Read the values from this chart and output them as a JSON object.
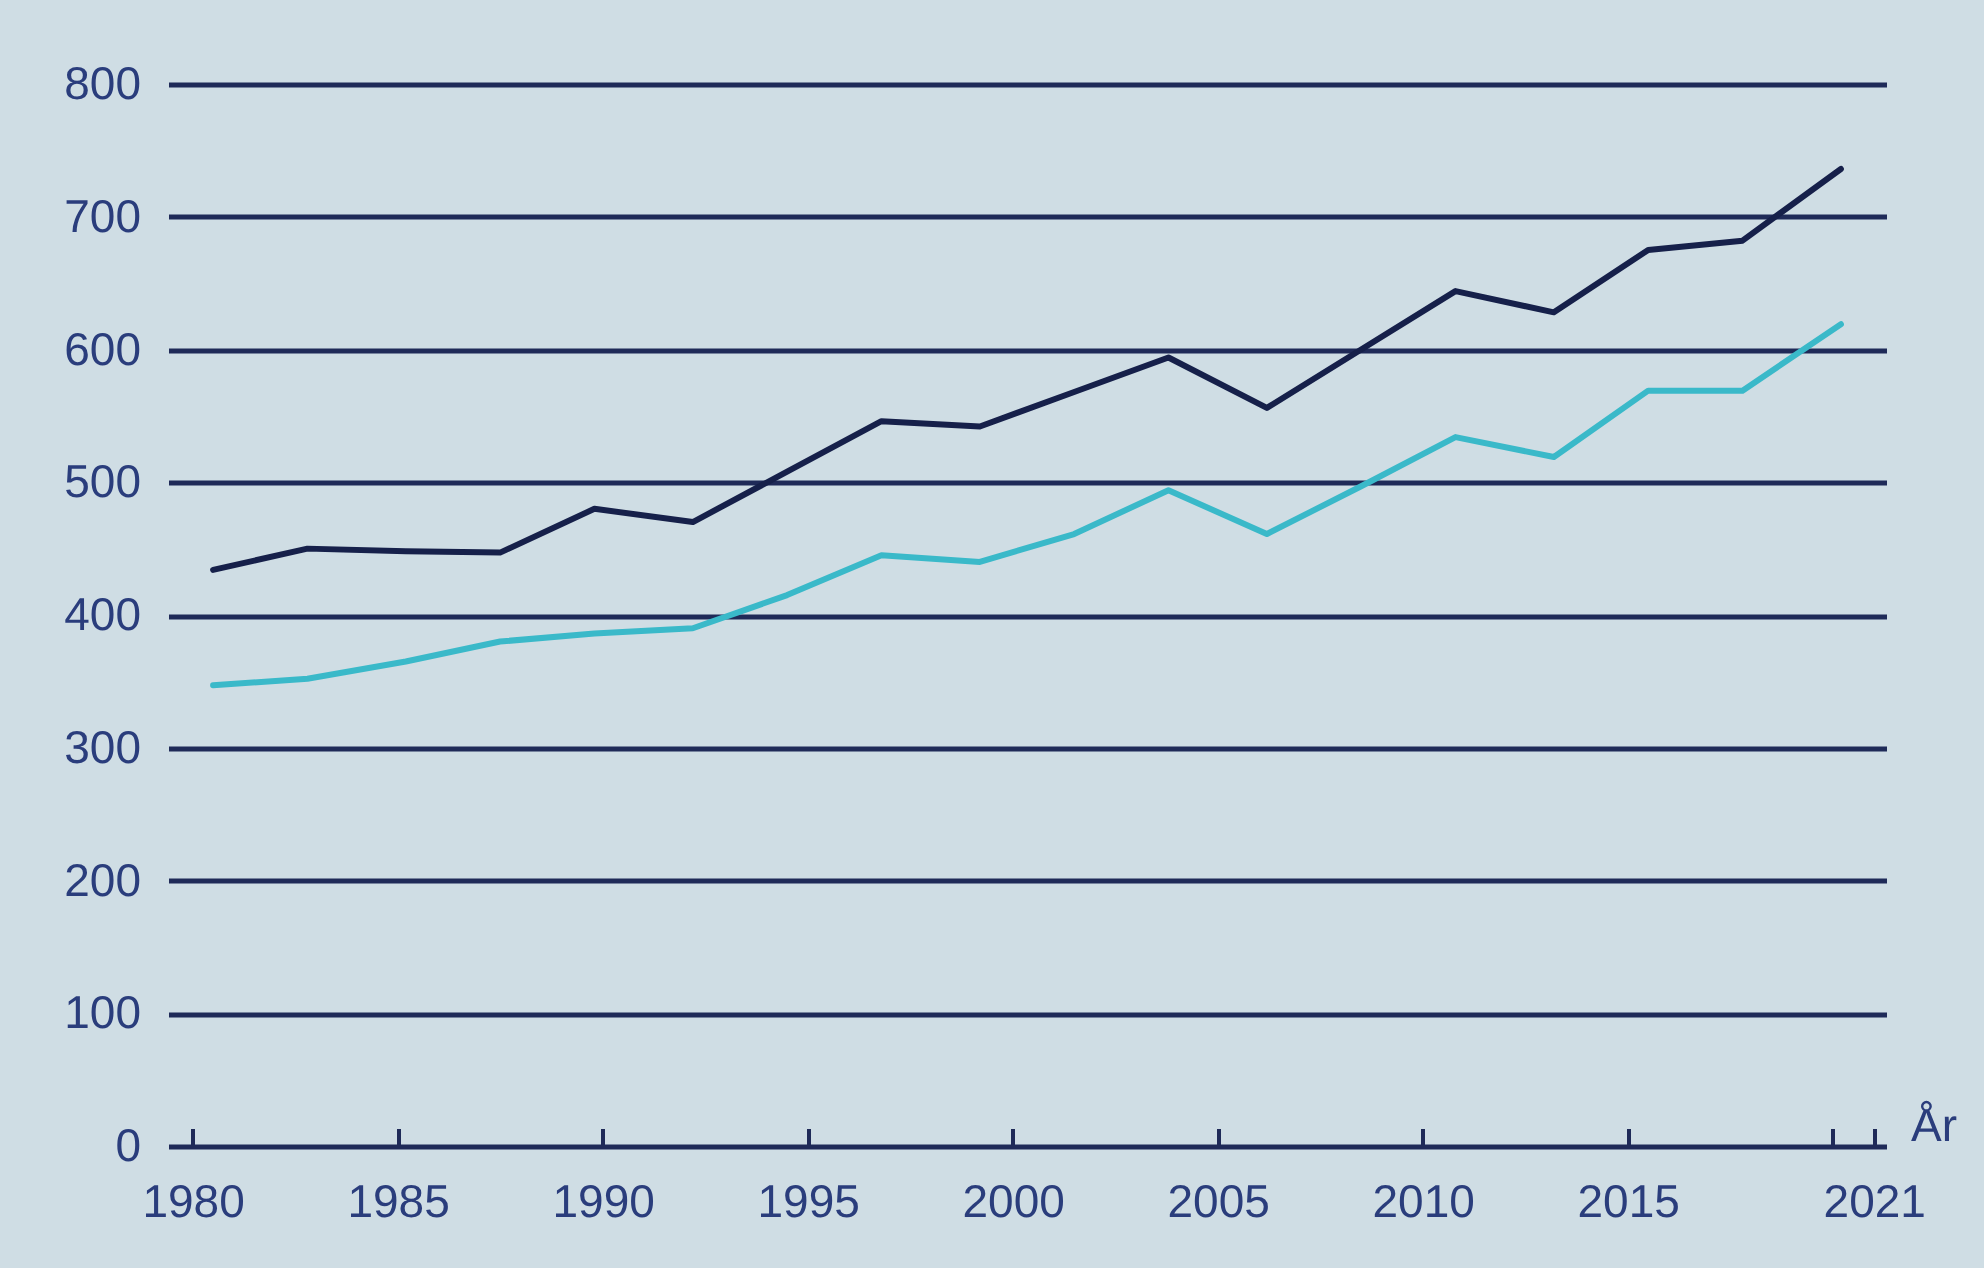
{
  "chart_data": {
    "type": "line",
    "xlabel": "År",
    "x": [
      1980.5,
      1982.8,
      1985.2,
      1987.5,
      1989.8,
      1992.2,
      1994.5,
      1996.8,
      1999.2,
      2001.5,
      2003.8,
      2006.2,
      2008.5,
      2010.8,
      2013.2,
      2015.5,
      2017.8,
      2020.2
    ],
    "series": [
      {
        "color": "#16204a",
        "values": [
          434,
          450,
          448,
          447,
          480,
          470,
          508,
          546,
          542,
          568,
          594,
          556,
          600,
          644,
          628,
          675,
          682,
          736
        ]
      },
      {
        "color": "#3ab9c9",
        "values": [
          347,
          352,
          365,
          380,
          386,
          390,
          415,
          445,
          440,
          461,
          494,
          461,
          497,
          534,
          519,
          569,
          569,
          619
        ]
      }
    ],
    "xlim": [
      1979.4,
      2021.3
    ],
    "ylim": [
      0,
      800
    ],
    "xticks": [
      1980,
      1985,
      1990,
      1995,
      2000,
      2005,
      2010,
      2015,
      {
        "value": 2020,
        "label": null
      },
      2021
    ],
    "yticks": [
      0,
      100,
      200,
      300,
      400,
      500,
      600,
      700,
      800
    ],
    "grid": "y",
    "legend": false,
    "marker": "none",
    "line_style": "solid"
  }
}
